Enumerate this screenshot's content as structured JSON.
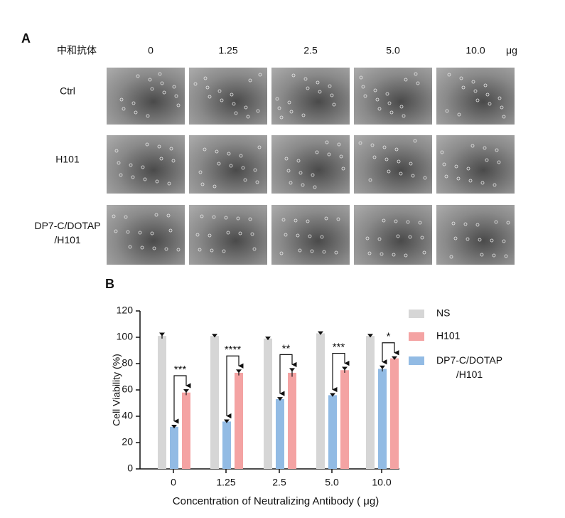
{
  "panel_a": {
    "label": "A",
    "header": "中和抗体",
    "columns": [
      "0",
      "1.25",
      "2.5",
      "5.0",
      "10.0"
    ],
    "unit": "μg",
    "rows": [
      "Ctrl",
      "H101",
      "DP7-C/DOTAP/H101"
    ]
  },
  "chart_data": {
    "type": "bar",
    "panel_label": "B",
    "y_label": "Cell Viability (%)",
    "x_label": "Concentration of Neutralizing Antibody ( μg)",
    "categories": [
      "0",
      "1.25",
      "2.5",
      "5.0",
      "10.0"
    ],
    "series": [
      {
        "name": "NS",
        "color": "#d6d6d6",
        "values": [
          101,
          101,
          99,
          103,
          101
        ],
        "errors": [
          2,
          1,
          1,
          1,
          1
        ]
      },
      {
        "name": "H101",
        "color": "#f4a3a3",
        "values": [
          58,
          73,
          73,
          75,
          84
        ],
        "errors": [
          2,
          2,
          3,
          2,
          1
        ]
      },
      {
        "name": "DP7-C/DOTAP/H101",
        "color": "#92bbe4",
        "values": [
          32,
          36,
          53,
          56,
          76
        ],
        "errors": [
          1,
          1,
          1,
          1,
          2
        ]
      }
    ],
    "annotations": [
      "***",
      "****",
      "**",
      "***",
      "*"
    ],
    "ylim": [
      0,
      120
    ],
    "yticks": [
      0,
      20,
      40,
      60,
      80,
      100,
      120
    ],
    "grid": false,
    "legend": "right"
  }
}
